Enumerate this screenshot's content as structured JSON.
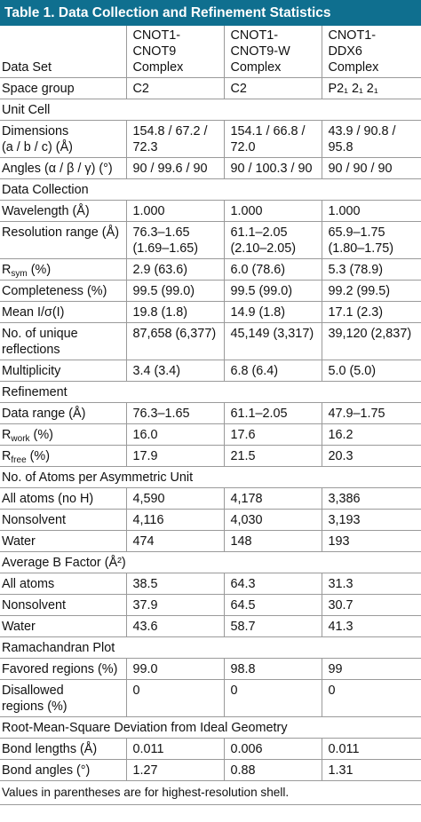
{
  "title": "Table 1.  Data Collection and Refinement Statistics",
  "header": {
    "data_set_label": "Data Set",
    "columns": [
      [
        "CNOT1-",
        "CNOT9",
        "Complex"
      ],
      [
        "CNOT1-",
        "CNOT9-W",
        "Complex"
      ],
      [
        "CNOT1-",
        "DDX6",
        "Complex"
      ]
    ]
  },
  "rows": [
    {
      "type": "row",
      "label": "Space group",
      "values": [
        "C2",
        "C2",
        "P2₁ 2₁ 2₁"
      ]
    },
    {
      "type": "section",
      "label": "Unit Cell"
    },
    {
      "type": "row",
      "label": [
        "Dimensions",
        "(a / b / c) (Å)"
      ],
      "values": [
        [
          "154.8 / 67.2 /",
          "72.3"
        ],
        [
          "154.1 / 66.8 /",
          "72.0"
        ],
        [
          "43.9 / 90.8 /",
          "95.8"
        ]
      ]
    },
    {
      "type": "row",
      "label": "Angles (α / β / γ) (°)",
      "values": [
        "90 / 99.6 / 90",
        "90 / 100.3 / 90",
        "90 / 90 / 90"
      ]
    },
    {
      "type": "section",
      "label": "Data Collection"
    },
    {
      "type": "row",
      "label": "Wavelength (Å)",
      "values": [
        "1.000",
        "1.000",
        "1.000"
      ]
    },
    {
      "type": "row",
      "label": "Resolution range (Å)",
      "values": [
        [
          "76.3–1.65",
          "(1.69–1.65)"
        ],
        [
          "61.1–2.05",
          "(2.10–2.05)"
        ],
        [
          "65.9–1.75",
          "(1.80–1.75)"
        ]
      ]
    },
    {
      "type": "row",
      "label": "Rsym (%)",
      "label_parts": [
        "R",
        "sym",
        " (%)"
      ],
      "values": [
        "2.9 (63.6)",
        "6.0 (78.6)",
        "5.3 (78.9)"
      ]
    },
    {
      "type": "row",
      "label": "Completeness (%)",
      "values": [
        "99.5 (99.0)",
        "99.5 (99.0)",
        "99.2 (99.5)"
      ]
    },
    {
      "type": "row",
      "label": "Mean I/σ(I)",
      "values": [
        "19.8 (1.8)",
        "14.9 (1.8)",
        "17.1 (2.3)"
      ]
    },
    {
      "type": "row",
      "label": [
        "No. of unique",
        "reflections"
      ],
      "values": [
        "87,658 (6,377)",
        "45,149 (3,317)",
        "39,120 (2,837)"
      ]
    },
    {
      "type": "row",
      "label": "Multiplicity",
      "values": [
        "3.4 (3.4)",
        "6.8 (6.4)",
        "5.0 (5.0)"
      ]
    },
    {
      "type": "section",
      "label": "Refinement"
    },
    {
      "type": "row",
      "label": "Data range (Å)",
      "values": [
        "76.3–1.65",
        "61.1–2.05",
        "47.9–1.75"
      ]
    },
    {
      "type": "row",
      "label": "Rwork (%)",
      "label_parts": [
        "R",
        "work",
        " (%)"
      ],
      "values": [
        "16.0",
        "17.6",
        "16.2"
      ]
    },
    {
      "type": "row",
      "label": "Rfree (%)",
      "label_parts": [
        "R",
        "free",
        " (%)"
      ],
      "values": [
        "17.9",
        "21.5",
        "20.3"
      ]
    },
    {
      "type": "section",
      "label": "No. of Atoms per Asymmetric Unit"
    },
    {
      "type": "row",
      "label": "All atoms (no H)",
      "values": [
        "4,590",
        "4,178",
        "3,386"
      ]
    },
    {
      "type": "row",
      "label": "Nonsolvent",
      "values": [
        "4,116",
        "4,030",
        "3,193"
      ]
    },
    {
      "type": "row",
      "label": "Water",
      "values": [
        "474",
        "148",
        "193"
      ]
    },
    {
      "type": "section",
      "label": "Average B Factor (Å²)"
    },
    {
      "type": "row",
      "label": "All atoms",
      "values": [
        "38.5",
        "64.3",
        "31.3"
      ]
    },
    {
      "type": "row",
      "label": "Nonsolvent",
      "values": [
        "37.9",
        "64.5",
        "30.7"
      ]
    },
    {
      "type": "row",
      "label": "Water",
      "values": [
        "43.6",
        "58.7",
        "41.3"
      ]
    },
    {
      "type": "section",
      "label": "Ramachandran Plot"
    },
    {
      "type": "row",
      "label": "Favored regions (%)",
      "values": [
        "99.0",
        "98.8",
        "99"
      ]
    },
    {
      "type": "row",
      "label": [
        "Disallowed",
        "regions (%)"
      ],
      "values": [
        "0",
        "0",
        "0"
      ]
    },
    {
      "type": "section",
      "label": "Root-Mean-Square Deviation from Ideal Geometry"
    },
    {
      "type": "row",
      "label": "Bond lengths (Å)",
      "values": [
        "0.011",
        "0.006",
        "0.011"
      ]
    },
    {
      "type": "row",
      "label": "Bond angles (°)",
      "values": [
        "1.27",
        "0.88",
        "1.31"
      ]
    }
  ],
  "footer": "Values in parentheses are for highest-resolution shell."
}
